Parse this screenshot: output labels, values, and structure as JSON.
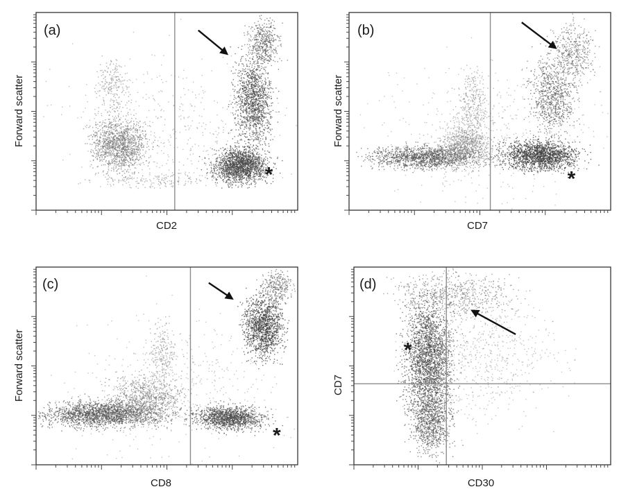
{
  "chart_data": [
    {
      "type": "scatter",
      "panel_label": "(a)",
      "xlabel": "CD2",
      "ylabel": "Forward scatter",
      "scale": "log",
      "gate_x": 0.53,
      "populations": [
        {
          "cx": 0.32,
          "cy": 0.33,
          "sx": 0.07,
          "sy": 0.09,
          "n": 1300,
          "shade": "#7a7a7a",
          "op": 0.7
        },
        {
          "cx": 0.29,
          "cy": 0.62,
          "sx": 0.04,
          "sy": 0.12,
          "n": 220,
          "shade": "#8a8a8a",
          "op": 0.65
        },
        {
          "cx": 0.46,
          "cy": 0.15,
          "sx": 0.17,
          "sy": 0.03,
          "n": 180,
          "shade": "#888",
          "op": 0.6
        },
        {
          "cx": 0.78,
          "cy": 0.23,
          "sx": 0.07,
          "sy": 0.06,
          "n": 1700,
          "shade": "#4a4a4a",
          "op": 0.75
        },
        {
          "cx": 0.83,
          "cy": 0.56,
          "sx": 0.05,
          "sy": 0.15,
          "n": 1300,
          "shade": "#454545",
          "op": 0.7
        },
        {
          "cx": 0.87,
          "cy": 0.85,
          "sx": 0.04,
          "sy": 0.09,
          "n": 450,
          "shade": "#555",
          "op": 0.65
        },
        {
          "cx": 0.55,
          "cy": 0.4,
          "sx": 0.3,
          "sy": 0.25,
          "n": 500,
          "shade": "#8c8c8c",
          "op": 0.55
        }
      ],
      "floor": 0.11,
      "arrow": {
        "x1": 0.62,
        "y1": 0.91,
        "x2": 0.73,
        "y2": 0.79
      },
      "asterisk": {
        "x": 0.89,
        "y": 0.18
      }
    },
    {
      "type": "scatter",
      "panel_label": "(b)",
      "xlabel": "CD7",
      "ylabel": "Forward scatter",
      "scale": "log",
      "gate_x": 0.54,
      "populations": [
        {
          "cx": 0.3,
          "cy": 0.27,
          "sx": 0.14,
          "sy": 0.04,
          "n": 1400,
          "shade": "#555",
          "op": 0.7
        },
        {
          "cx": 0.44,
          "cy": 0.33,
          "sx": 0.07,
          "sy": 0.07,
          "n": 900,
          "shade": "#8a8a8a",
          "op": 0.65
        },
        {
          "cx": 0.47,
          "cy": 0.55,
          "sx": 0.04,
          "sy": 0.12,
          "n": 320,
          "shade": "#888",
          "op": 0.6
        },
        {
          "cx": 0.73,
          "cy": 0.28,
          "sx": 0.1,
          "sy": 0.05,
          "n": 1700,
          "shade": "#404040",
          "op": 0.75
        },
        {
          "cx": 0.78,
          "cy": 0.58,
          "sx": 0.06,
          "sy": 0.14,
          "n": 850,
          "shade": "#555",
          "op": 0.65
        },
        {
          "cx": 0.86,
          "cy": 0.8,
          "sx": 0.05,
          "sy": 0.1,
          "n": 420,
          "shade": "#5a5a5a",
          "op": 0.6
        },
        {
          "cx": 0.55,
          "cy": 0.4,
          "sx": 0.3,
          "sy": 0.25,
          "n": 450,
          "shade": "#8c8c8c",
          "op": 0.5
        }
      ],
      "floor": 0.0,
      "arrow": {
        "x1": 0.66,
        "y1": 0.95,
        "x2": 0.79,
        "y2": 0.82
      },
      "asterisk": {
        "x": 0.85,
        "y": 0.16
      }
    },
    {
      "type": "scatter",
      "panel_label": "(c)",
      "xlabel": "CD8",
      "ylabel": "Forward scatter",
      "scale": "log",
      "gate_x": 0.59,
      "populations": [
        {
          "cx": 0.25,
          "cy": 0.26,
          "sx": 0.15,
          "sy": 0.045,
          "n": 1800,
          "shade": "#555",
          "op": 0.72
        },
        {
          "cx": 0.42,
          "cy": 0.33,
          "sx": 0.1,
          "sy": 0.08,
          "n": 900,
          "shade": "#7a7a7a",
          "op": 0.65
        },
        {
          "cx": 0.48,
          "cy": 0.55,
          "sx": 0.04,
          "sy": 0.12,
          "n": 260,
          "shade": "#888",
          "op": 0.6
        },
        {
          "cx": 0.74,
          "cy": 0.24,
          "sx": 0.09,
          "sy": 0.04,
          "n": 1300,
          "shade": "#4a4a4a",
          "op": 0.72
        },
        {
          "cx": 0.87,
          "cy": 0.7,
          "sx": 0.05,
          "sy": 0.11,
          "n": 1300,
          "shade": "#3c3c3c",
          "op": 0.72
        },
        {
          "cx": 0.92,
          "cy": 0.9,
          "sx": 0.04,
          "sy": 0.06,
          "n": 300,
          "shade": "#555",
          "op": 0.6
        },
        {
          "cx": 0.55,
          "cy": 0.4,
          "sx": 0.3,
          "sy": 0.25,
          "n": 500,
          "shade": "#8c8c8c",
          "op": 0.5
        }
      ],
      "floor": 0.0,
      "arrow": {
        "x1": 0.66,
        "y1": 0.92,
        "x2": 0.75,
        "y2": 0.84
      },
      "asterisk": {
        "x": 0.92,
        "y": 0.15
      }
    },
    {
      "type": "scatter",
      "panel_label": "(d)",
      "xlabel": "CD30",
      "ylabel": "CD7",
      "scale": "log",
      "gate_x": 0.36,
      "gate_y": 0.41,
      "populations": [
        {
          "cx": 0.29,
          "cy": 0.55,
          "sx": 0.065,
          "sy": 0.2,
          "n": 2300,
          "shade": "#4a4a4a",
          "op": 0.72
        },
        {
          "cx": 0.3,
          "cy": 0.22,
          "sx": 0.055,
          "sy": 0.12,
          "n": 900,
          "shade": "#555",
          "op": 0.68
        },
        {
          "cx": 0.4,
          "cy": 0.86,
          "sx": 0.15,
          "sy": 0.08,
          "n": 650,
          "shade": "#6a6a6a",
          "op": 0.6
        },
        {
          "cx": 0.5,
          "cy": 0.55,
          "sx": 0.2,
          "sy": 0.22,
          "n": 700,
          "shade": "#8a8a8a",
          "op": 0.5
        }
      ],
      "floor": 0.0,
      "arrow": {
        "x1": 0.63,
        "y1": 0.66,
        "x2": 0.46,
        "y2": 0.78
      },
      "asterisk": {
        "x": 0.21,
        "y": 0.58
      }
    }
  ],
  "colors": {
    "frame": "#333333",
    "gate": "#8c8c8c",
    "arrow": "#111111"
  }
}
